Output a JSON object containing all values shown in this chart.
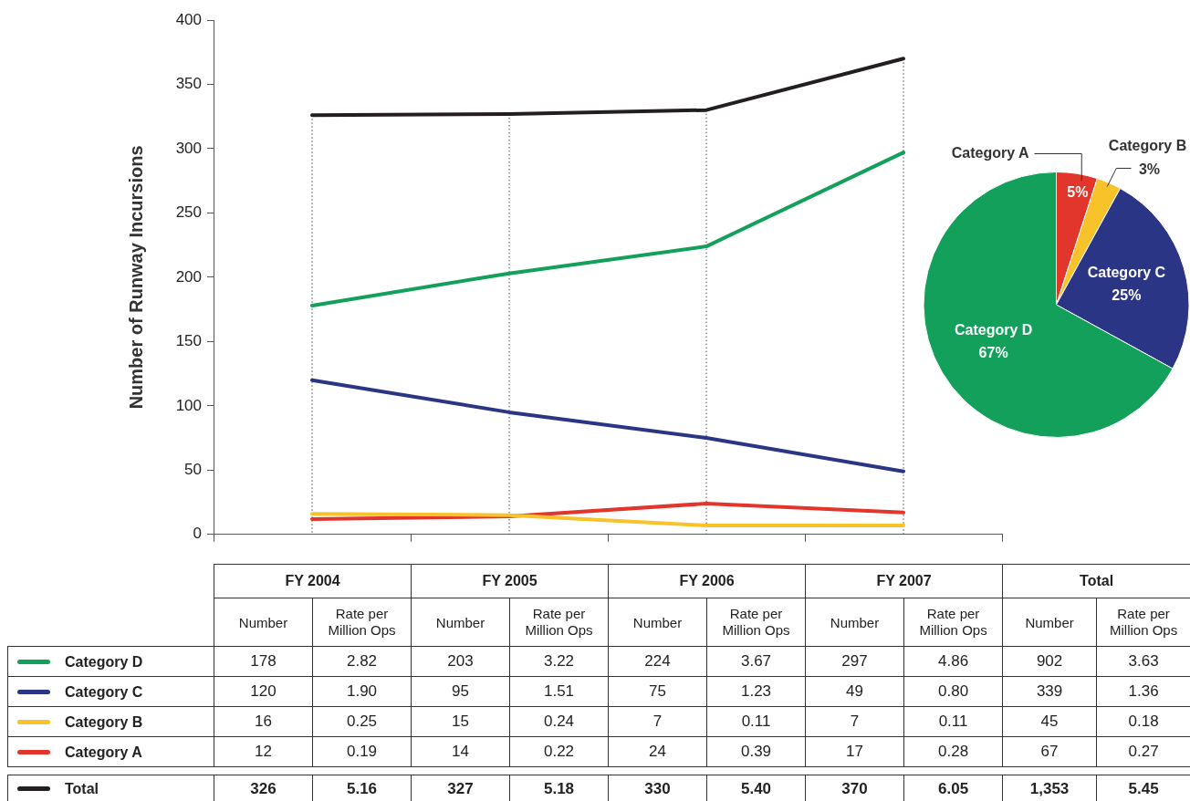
{
  "chart_data": [
    {
      "type": "line",
      "ylabel": "Number of Runway Incursions",
      "categories": [
        null,
        null,
        null,
        null
      ],
      "series": [
        {
          "name": "Category D",
          "color": "#12a05a",
          "values": [
            178,
            203,
            224,
            297
          ]
        },
        {
          "name": "Category C",
          "color": "#2b3585",
          "values": [
            120,
            95,
            75,
            49
          ]
        },
        {
          "name": "Category B",
          "color": "#f8c22a",
          "values": [
            16,
            15,
            7,
            7
          ]
        },
        {
          "name": "Category A",
          "color": "#e2352c",
          "values": [
            12,
            14,
            24,
            17
          ]
        },
        {
          "name": "Total",
          "color": "#231f20",
          "values": [
            326,
            327,
            330,
            370
          ]
        }
      ],
      "ylim": [
        0,
        400
      ],
      "yticks": [
        0,
        50,
        100,
        150,
        200,
        250,
        300,
        350,
        400
      ],
      "grid": "x",
      "marker": "none",
      "line_style": "solid",
      "tick_labels": "y",
      "data_labels": true,
      "totals": [
        "902",
        "339",
        "45",
        "67",
        "1,353"
      ]
    },
    {
      "type": "other",
      "data_labels": true,
      "categories": [
        "FY 2004",
        "FY 2005",
        "FY 2006",
        "FY 2007",
        "Total"
      ],
      "annotations": [
        "Number",
        "Rate per Million Ops"
      ],
      "series": [
        {
          "values": [
            2.82,
            3.22,
            3.67,
            4.86,
            3.63
          ],
          "value_labels": [
            "2.82",
            "3.22",
            "3.67",
            "4.86",
            "3.63"
          ]
        },
        {
          "values": [
            1.9,
            1.51,
            1.23,
            0.8,
            1.36
          ],
          "value_labels": [
            "1.90",
            "1.51",
            "1.23",
            "0.80",
            "1.36"
          ]
        },
        {
          "values": [
            0.25,
            0.24,
            0.11,
            0.11,
            0.18
          ],
          "value_labels": [
            "0.25",
            "0.24",
            "0.11",
            "0.11",
            "0.18"
          ]
        },
        {
          "values": [
            0.19,
            0.22,
            0.39,
            0.28,
            0.27
          ],
          "value_labels": [
            "0.19",
            "0.22",
            "0.39",
            "0.28",
            "0.27"
          ]
        },
        {
          "values": [
            5.16,
            5.18,
            5.4,
            6.05,
            5.45
          ],
          "value_labels": [
            "5.16",
            "5.18",
            "5.40",
            "6.05",
            "5.45"
          ]
        }
      ]
    },
    {
      "type": "pie",
      "categories": [
        "Category A",
        "Category B",
        "Category C",
        "Category D"
      ],
      "values": [
        5,
        3,
        25,
        67
      ],
      "colors": [
        "#e2352c",
        "#f8c22a",
        "#2b3585",
        "#12a05a"
      ],
      "value_labels": [
        "5%",
        "3%",
        "25%",
        "67%"
      ]
    }
  ]
}
